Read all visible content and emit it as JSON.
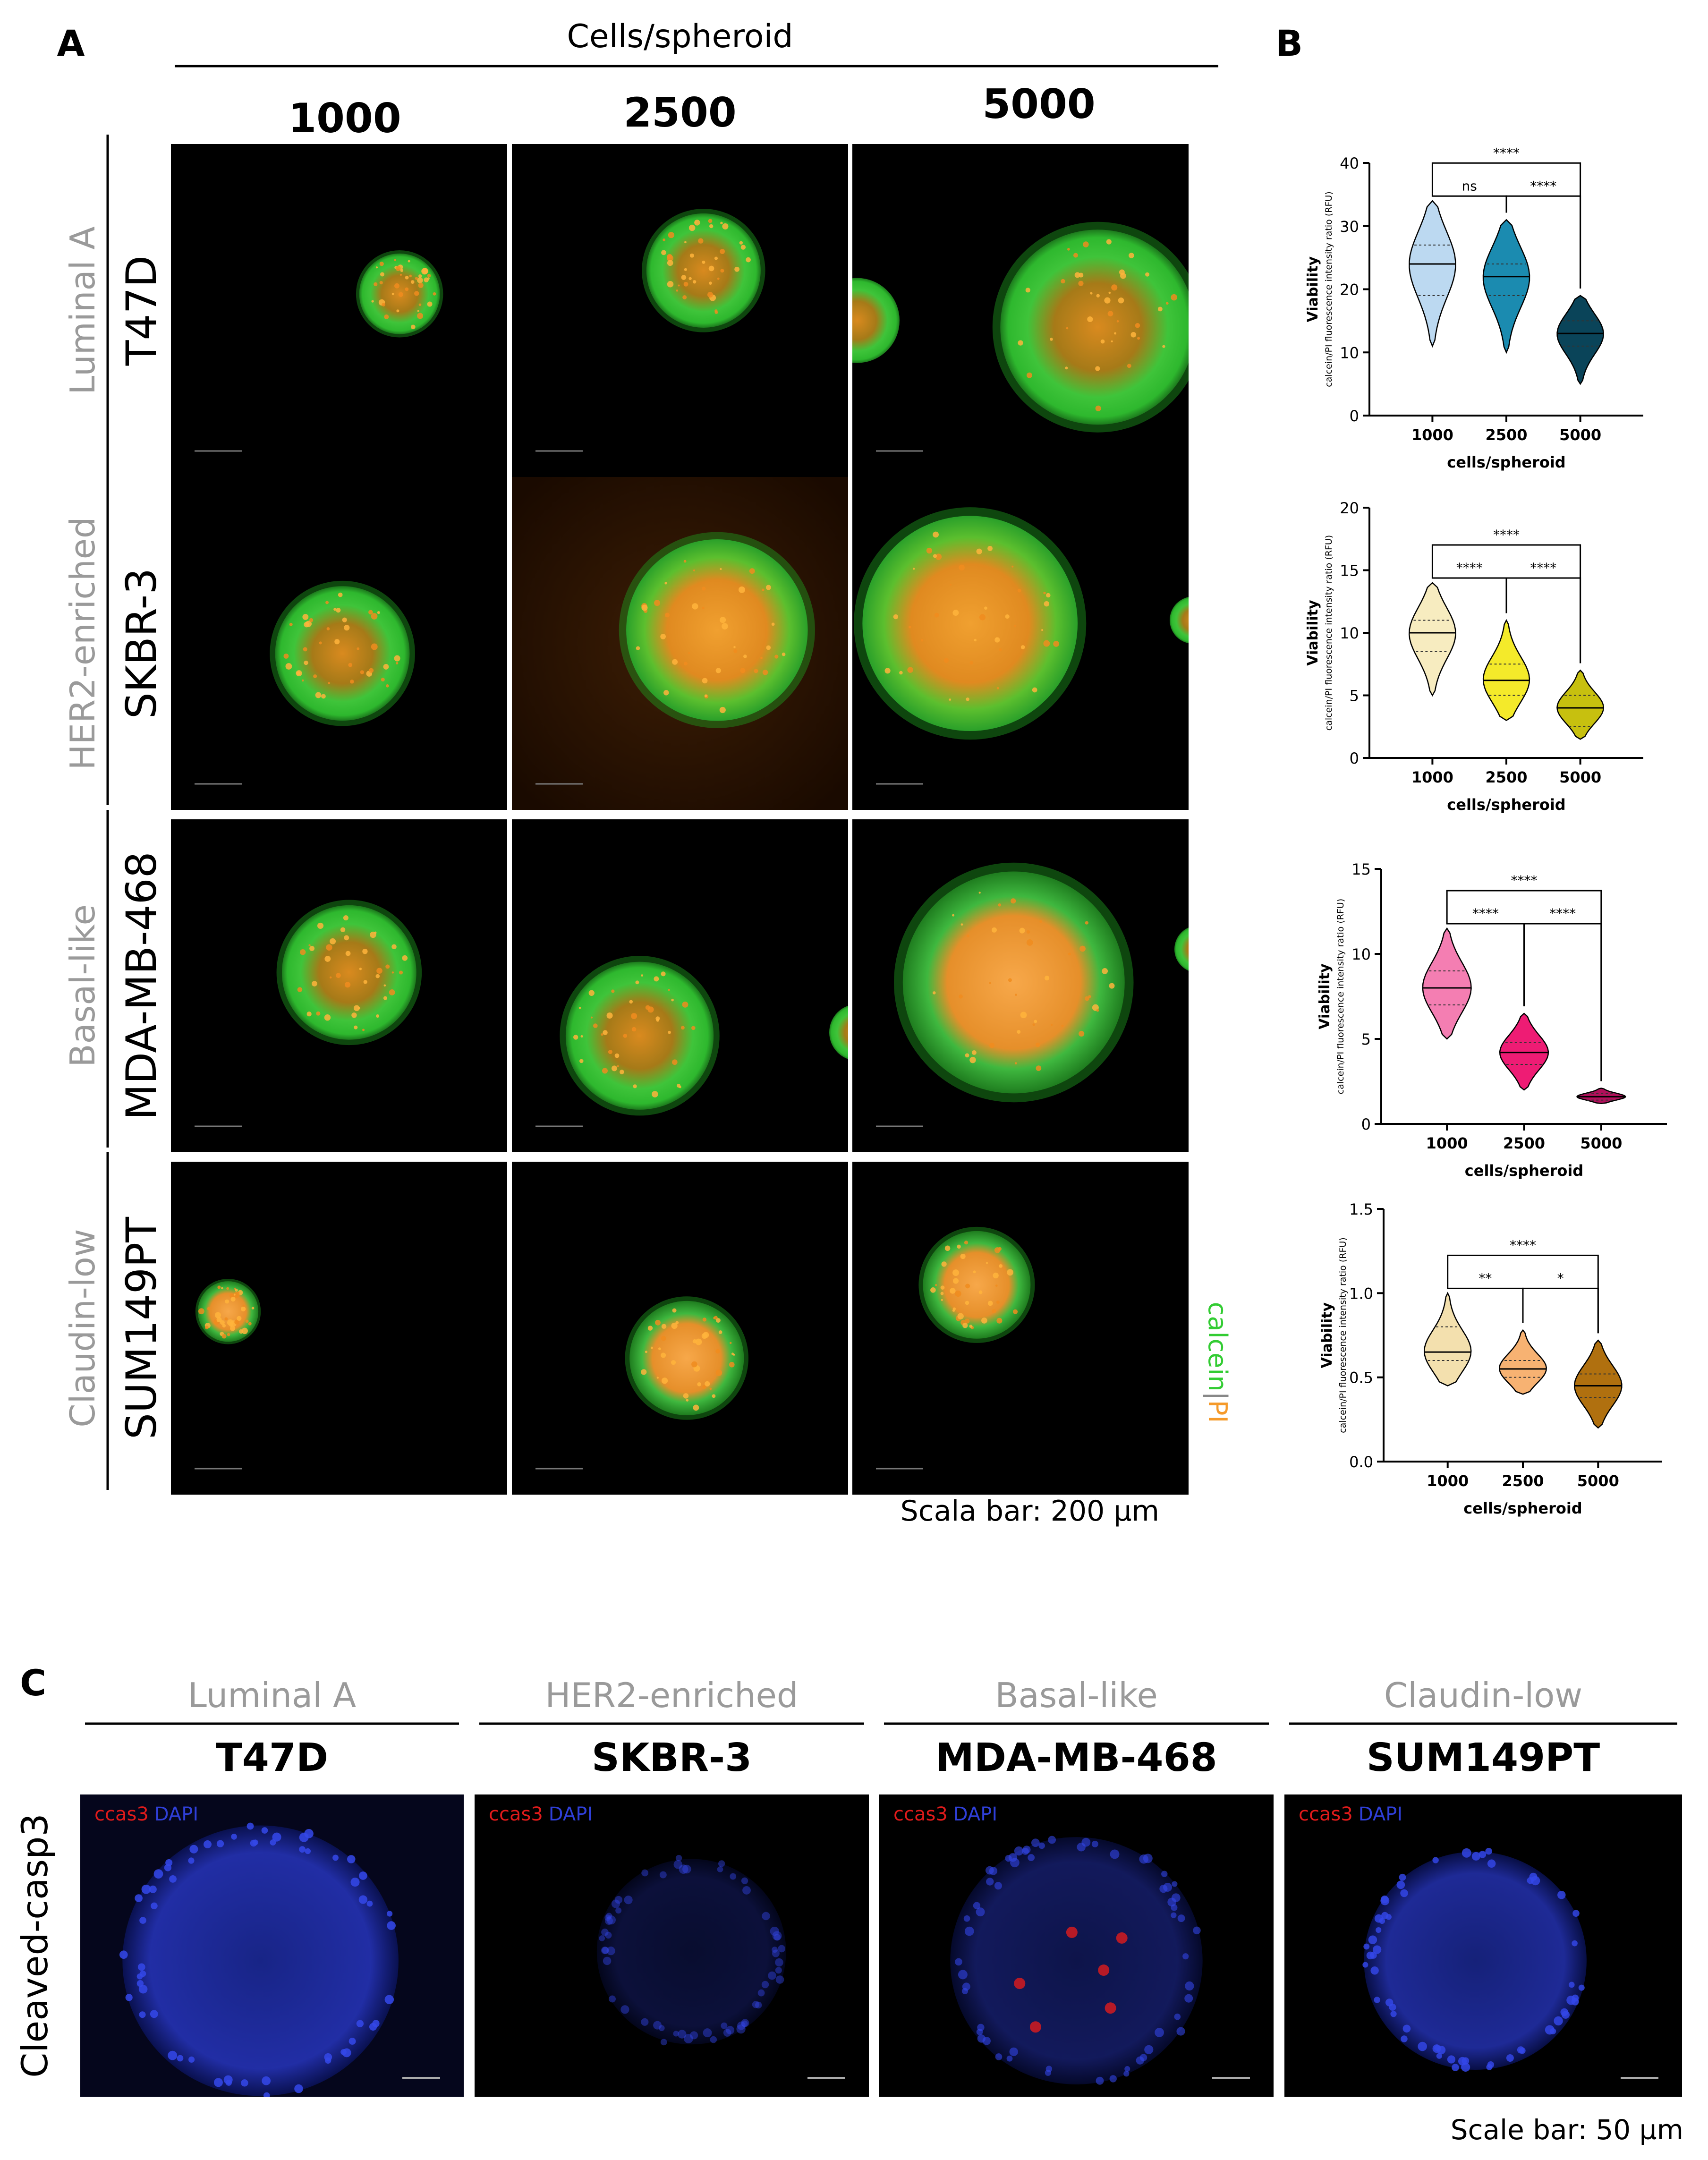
{
  "panel_a": {
    "label": "A",
    "header": "Cells/spheroid",
    "columns": [
      "1000",
      "2500",
      "5000"
    ],
    "rows": [
      {
        "subtype": "Luminal A",
        "cell_line": "T47D"
      },
      {
        "subtype": "HER2-enriched",
        "cell_line": "SKBR-3"
      },
      {
        "subtype": "Basal-like",
        "cell_line": "MDA-MB-468"
      },
      {
        "subtype": "Claudin-low",
        "cell_line": "SUM149PT"
      }
    ],
    "stain_label_a": "calcein",
    "stain_sep": "|",
    "stain_label_b": "PI",
    "scale_bar": "Scala bar: 200 µm"
  },
  "panel_b": {
    "label": "B",
    "ylabel_main": "Viability",
    "ylabel_sub": "calcein/PI fluorescence intensity ratio (RFU)",
    "xlabel": "cells/spheroid"
  },
  "chart_data": [
    {
      "type": "violin",
      "categories": [
        "1000",
        "2500",
        "5000"
      ],
      "ylim": [
        0,
        40
      ],
      "yticks": [
        "0",
        "10",
        "20",
        "30",
        "40"
      ],
      "medians": [
        24,
        22,
        13
      ],
      "quartiles": [
        [
          19,
          27
        ],
        [
          19,
          24
        ],
        [
          11,
          15
        ]
      ],
      "ranges": [
        [
          11,
          34
        ],
        [
          10,
          31
        ],
        [
          5,
          19
        ]
      ],
      "colors": [
        "#bcd9f1",
        "#1b8bb0",
        "#0a4459"
      ],
      "significance": [
        {
          "pair": [
            "1000",
            "2500"
          ],
          "label": "ns"
        },
        {
          "pair": [
            "2500",
            "5000"
          ],
          "label": "****"
        },
        {
          "pair": [
            "1000",
            "5000"
          ],
          "label": "****"
        }
      ]
    },
    {
      "type": "violin",
      "categories": [
        "1000",
        "2500",
        "5000"
      ],
      "ylim": [
        0,
        20
      ],
      "yticks": [
        "0",
        "5",
        "10",
        "15",
        "20"
      ],
      "medians": [
        10,
        6.2,
        4
      ],
      "quartiles": [
        [
          8.5,
          11
        ],
        [
          5,
          7.5
        ],
        [
          2.5,
          5
        ]
      ],
      "ranges": [
        [
          5,
          14
        ],
        [
          3,
          11
        ],
        [
          1.5,
          7
        ]
      ],
      "colors": [
        "#f7ecc0",
        "#f4ea2a",
        "#c7c00f"
      ],
      "significance": [
        {
          "pair": [
            "1000",
            "2500"
          ],
          "label": "****"
        },
        {
          "pair": [
            "2500",
            "5000"
          ],
          "label": "****"
        },
        {
          "pair": [
            "1000",
            "5000"
          ],
          "label": "****"
        }
      ]
    },
    {
      "type": "violin",
      "categories": [
        "1000",
        "2500",
        "5000"
      ],
      "ylim": [
        0,
        15
      ],
      "yticks": [
        "0",
        "5",
        "10",
        "15"
      ],
      "medians": [
        8,
        4.2,
        1.6
      ],
      "quartiles": [
        [
          7,
          9
        ],
        [
          3.5,
          4.8
        ],
        [
          1.4,
          1.8
        ]
      ],
      "ranges": [
        [
          5,
          11.5
        ],
        [
          2,
          6.5
        ],
        [
          1.2,
          2.1
        ]
      ],
      "colors": [
        "#f47eb2",
        "#ee1c74",
        "#b0105a"
      ],
      "significance": [
        {
          "pair": [
            "1000",
            "2500"
          ],
          "label": "****"
        },
        {
          "pair": [
            "2500",
            "5000"
          ],
          "label": "****"
        },
        {
          "pair": [
            "1000",
            "5000"
          ],
          "label": "****"
        }
      ]
    },
    {
      "type": "violin",
      "categories": [
        "1000",
        "2500",
        "5000"
      ],
      "ylim": [
        0,
        1.5
      ],
      "yticks": [
        "0.0",
        "0.5",
        "1.0",
        "1.5"
      ],
      "medians": [
        0.65,
        0.55,
        0.45
      ],
      "quartiles": [
        [
          0.6,
          0.8
        ],
        [
          0.5,
          0.6
        ],
        [
          0.38,
          0.52
        ]
      ],
      "ranges": [
        [
          0.45,
          1.0
        ],
        [
          0.4,
          0.78
        ],
        [
          0.2,
          0.72
        ]
      ],
      "colors": [
        "#f3e0ae",
        "#f7b272",
        "#b0700f"
      ],
      "significance": [
        {
          "pair": [
            "1000",
            "2500"
          ],
          "label": "**"
        },
        {
          "pair": [
            "2500",
            "5000"
          ],
          "label": "*"
        },
        {
          "pair": [
            "1000",
            "5000"
          ],
          "label": "****"
        }
      ]
    }
  ],
  "panel_c": {
    "label": "C",
    "row_label": "Cleaved-casp3",
    "columns": [
      {
        "subtype": "Luminal A",
        "cell_line": "T47D"
      },
      {
        "subtype": "HER2-enriched",
        "cell_line": "SKBR-3"
      },
      {
        "subtype": "Basal-like",
        "cell_line": "MDA-MB-468"
      },
      {
        "subtype": "Claudin-low",
        "cell_line": "SUM149PT"
      }
    ],
    "legend_a": "ccas3",
    "legend_b": "DAPI",
    "scale_bar": "Scale bar: 50 µm"
  },
  "colors": {
    "subtype_gray": "#9a9a9a",
    "calcein": "#33cc33",
    "pi": "#f59a2a",
    "ccas3": "#e01b1b",
    "dapi": "#2f3fd8"
  }
}
